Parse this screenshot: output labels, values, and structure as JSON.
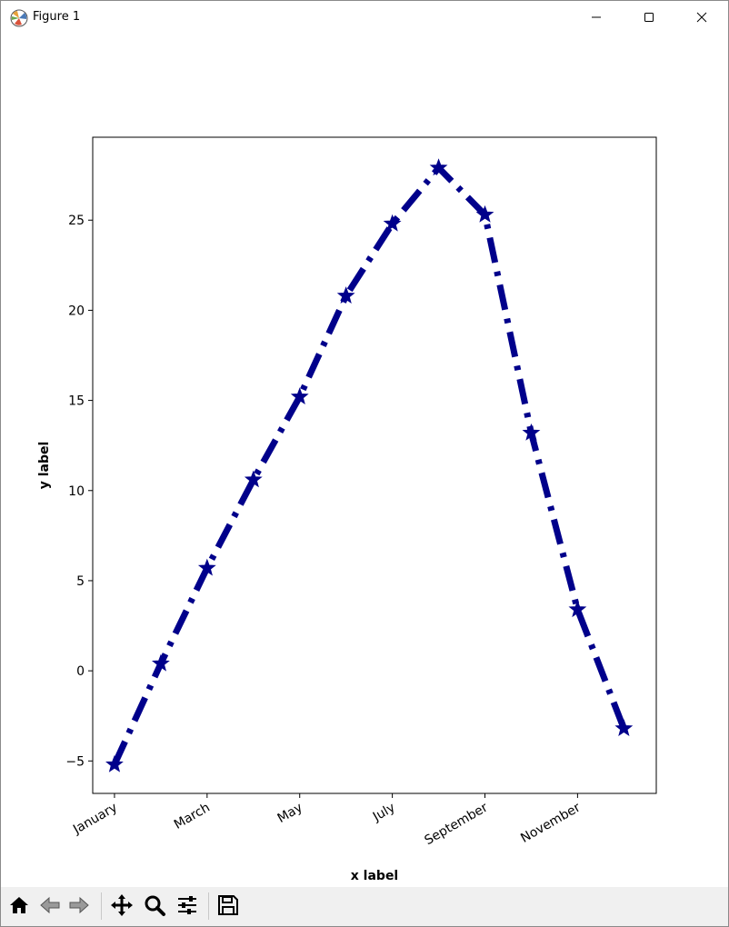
{
  "window": {
    "title": "Figure 1"
  },
  "toolbar": {
    "buttons": [
      {
        "icon": "home-icon"
      },
      {
        "icon": "back-arrow-icon"
      },
      {
        "icon": "forward-arrow-icon"
      },
      {
        "icon": "pan-move-icon"
      },
      {
        "icon": "zoom-magnifier-icon"
      },
      {
        "icon": "configure-subplots-icon"
      },
      {
        "icon": "save-floppy-icon"
      }
    ]
  },
  "chart_data": {
    "type": "line",
    "title": "",
    "xlabel": "x label",
    "ylabel": "y label",
    "x": [
      1,
      2,
      3,
      4,
      5,
      6,
      7,
      8,
      9,
      10,
      11,
      12
    ],
    "xticks": [
      1,
      3,
      5,
      7,
      9,
      11
    ],
    "xticklabels": [
      "January",
      "March",
      "May",
      "July",
      "September",
      "November"
    ],
    "yticks": [
      -5,
      0,
      5,
      10,
      15,
      20,
      25
    ],
    "yticklabels": [
      "−5",
      "0",
      "5",
      "10",
      "15",
      "20",
      "25"
    ],
    "xlim": [
      0.53,
      12.7
    ],
    "ylim": [
      -6.8,
      29.6
    ],
    "series": [
      {
        "values": [
          -5.2,
          0.4,
          5.7,
          10.6,
          15.2,
          20.8,
          24.8,
          27.9,
          25.3,
          13.2,
          3.4,
          -3.2
        ],
        "color": "#00008b",
        "linestyle": "dashdot",
        "marker": "star"
      }
    ],
    "grid": false,
    "legend": "none"
  }
}
